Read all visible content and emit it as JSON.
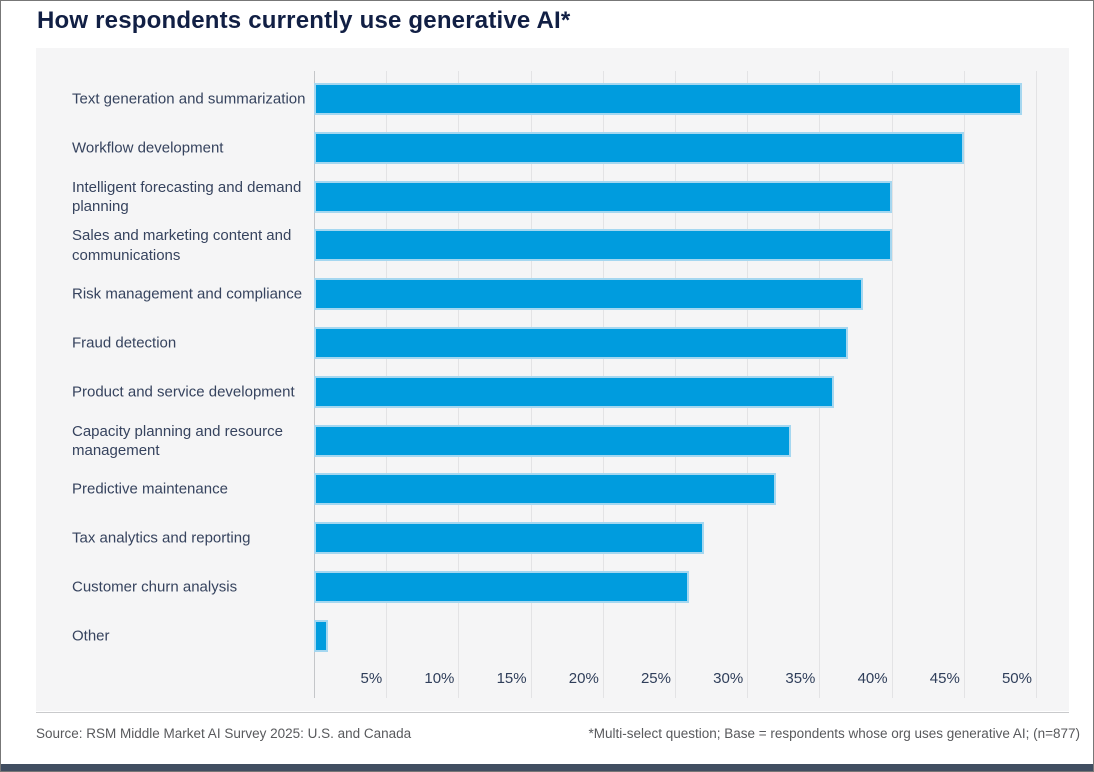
{
  "title": "How respondents currently use generative AI*",
  "footer": {
    "source": "Source: RSM Middle Market AI Survey 2025: U.S. and Canada",
    "note": "*Multi-select question; Base = respondents whose org uses generative AI; (n=877)"
  },
  "colors": {
    "bar_fill": "#009cde",
    "bar_edge": "#a5d7f0",
    "title_text": "#111f44",
    "category_text": "#36435e",
    "tick_text": "#2f3e5a",
    "panel_background": "#f5f5f6",
    "gridline": "#e3e3e5",
    "axis_line": "#c4c6c9",
    "footer_text": "#58595c",
    "bottom_accent_bar": "#414e61"
  },
  "chart_data": {
    "type": "bar",
    "orientation": "horizontal",
    "title": "How respondents currently use generative AI*",
    "categories": [
      "Text generation and summarization",
      "Workflow development",
      "Intelligent forecasting and demand planning",
      "Sales and marketing content and communications",
      "Risk management and compliance",
      "Fraud detection",
      "Product and service development",
      "Capacity planning and resource management",
      "Predictive maintenance",
      "Tax analytics and reporting",
      "Customer churn analysis",
      "Other"
    ],
    "values": [
      49,
      45,
      40,
      40,
      38,
      37,
      36,
      33,
      32,
      27,
      26,
      1
    ],
    "unit": "%",
    "xlabel": "",
    "ylabel": "",
    "x_tick_labels": [
      "5%",
      "10%",
      "15%",
      "20%",
      "25%",
      "30%",
      "35%",
      "40%",
      "45%",
      "50%"
    ],
    "x_tick_values": [
      5,
      10,
      15,
      20,
      25,
      30,
      35,
      40,
      45,
      50
    ],
    "xlim": [
      0,
      52.3
    ],
    "grid": "vertical",
    "legend": "none"
  }
}
